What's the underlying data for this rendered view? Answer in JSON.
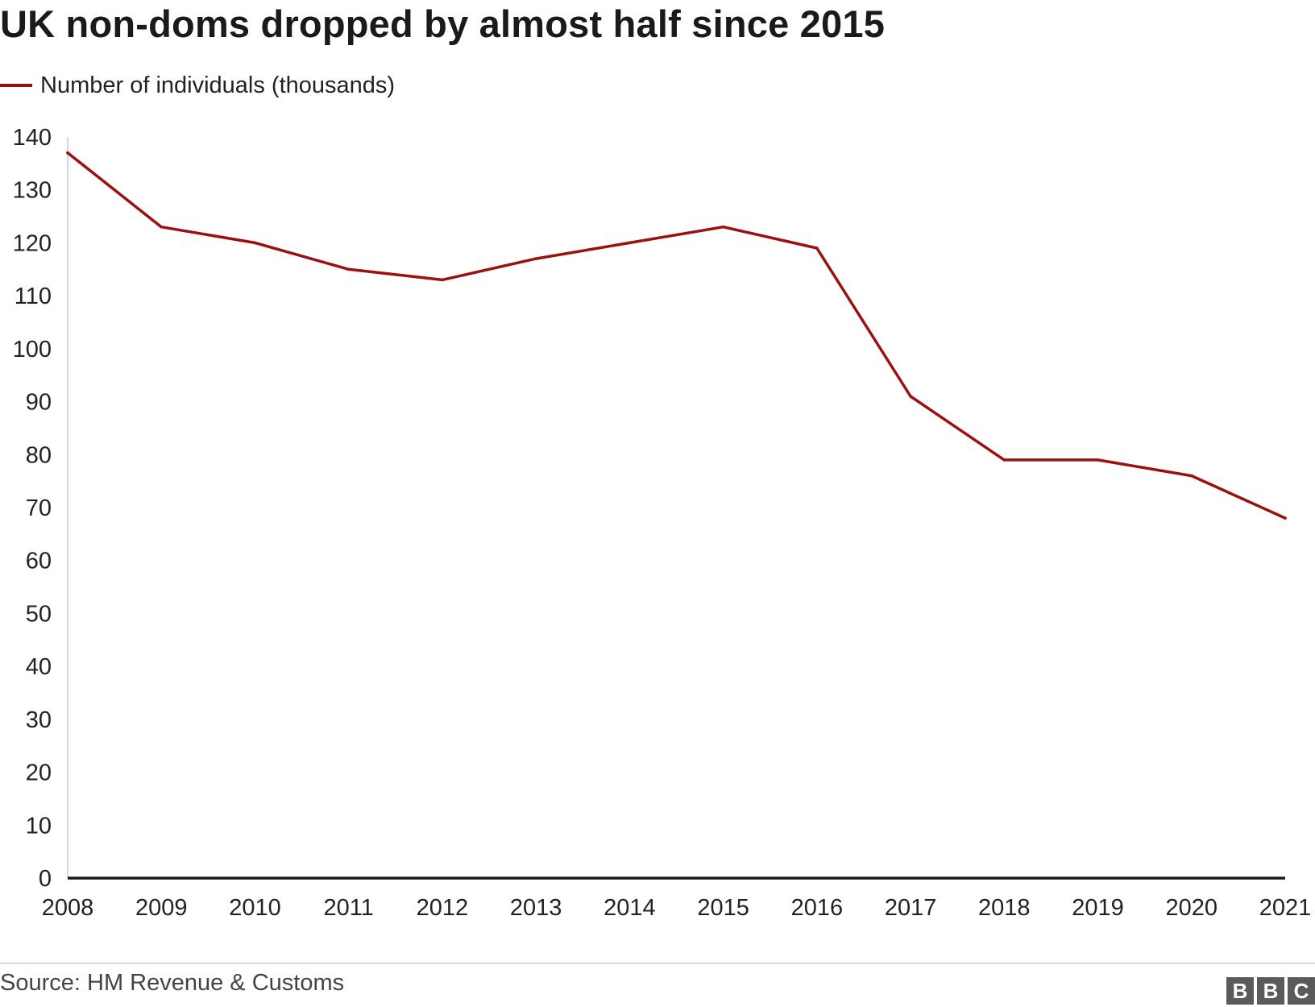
{
  "header": {
    "title": "UK non-doms dropped by almost half since 2015"
  },
  "legend": {
    "label": "Number of individuals (thousands)"
  },
  "footer": {
    "source": "Source: HM Revenue & Customs",
    "logo": [
      "B",
      "B",
      "C"
    ]
  },
  "colors": {
    "series": "#9b1111",
    "axis": "#1a1a1a",
    "tick_text": "#222222"
  },
  "chart_data": {
    "type": "line",
    "title": "UK non-doms dropped by almost half since 2015",
    "xlabel": "",
    "ylabel": "",
    "x": [
      "2008",
      "2009",
      "2010",
      "2011",
      "2012",
      "2013",
      "2014",
      "2015",
      "2016",
      "2017",
      "2018",
      "2019",
      "2020",
      "2021"
    ],
    "series": [
      {
        "name": "Number of individuals (thousands)",
        "values": [
          137,
          123,
          120,
          115,
          113,
          117,
          120,
          123,
          119,
          91,
          79,
          79,
          76,
          68
        ]
      }
    ],
    "ylim": [
      0,
      140
    ],
    "yticks": [
      0,
      10,
      20,
      30,
      40,
      50,
      60,
      70,
      80,
      90,
      100,
      110,
      120,
      130,
      140
    ],
    "grid": false,
    "legend_position": "top-left"
  }
}
